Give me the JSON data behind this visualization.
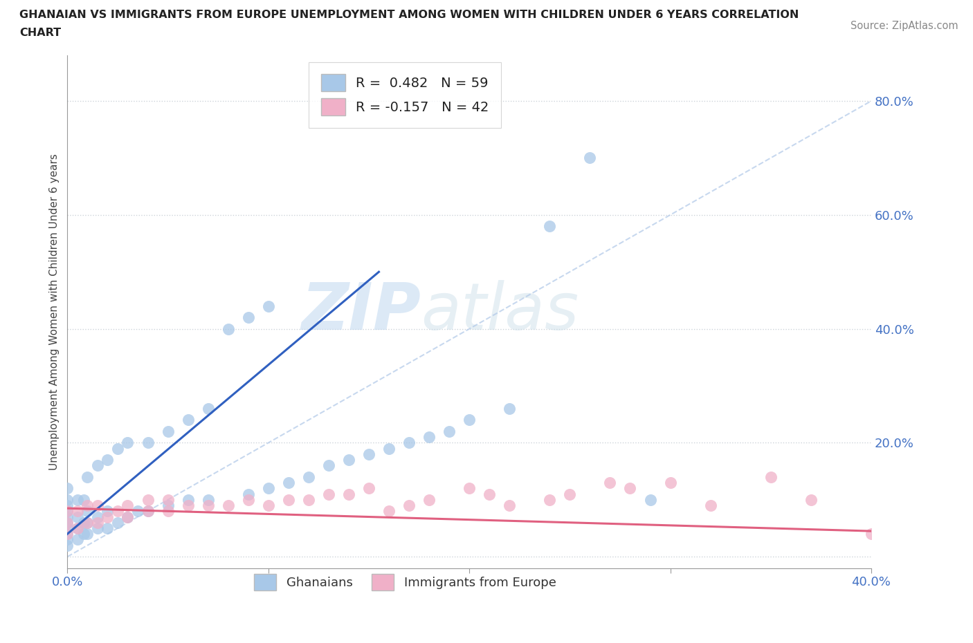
{
  "title_line1": "GHANAIAN VS IMMIGRANTS FROM EUROPE UNEMPLOYMENT AMONG WOMEN WITH CHILDREN UNDER 6 YEARS CORRELATION",
  "title_line2": "CHART",
  "source": "Source: ZipAtlas.com",
  "ylabel": "Unemployment Among Women with Children Under 6 years",
  "xlim": [
    0.0,
    0.4
  ],
  "ylim": [
    -0.02,
    0.88
  ],
  "legend1_label": "R =  0.482   N = 59",
  "legend2_label": "R = -0.157   N = 42",
  "ghanaian_color": "#a8c8e8",
  "europe_color": "#f0b0c8",
  "trend_blue": "#3060c0",
  "trend_pink": "#e06080",
  "diagonal_color": "#b0c8e8",
  "watermark_zip": "ZIP",
  "watermark_atlas": "atlas",
  "ghanaians_x": [
    0.0,
    0.0,
    0.0,
    0.0,
    0.0,
    0.0,
    0.0,
    0.0,
    0.0,
    0.0,
    0.005,
    0.005,
    0.005,
    0.005,
    0.008,
    0.008,
    0.008,
    0.01,
    0.01,
    0.01,
    0.01,
    0.015,
    0.015,
    0.015,
    0.02,
    0.02,
    0.02,
    0.025,
    0.025,
    0.03,
    0.03,
    0.035,
    0.04,
    0.04,
    0.05,
    0.05,
    0.06,
    0.06,
    0.07,
    0.07,
    0.08,
    0.09,
    0.09,
    0.1,
    0.1,
    0.11,
    0.12,
    0.13,
    0.14,
    0.15,
    0.16,
    0.17,
    0.18,
    0.19,
    0.2,
    0.22,
    0.24,
    0.26,
    0.29
  ],
  "ghanaians_y": [
    0.02,
    0.03,
    0.04,
    0.05,
    0.06,
    0.07,
    0.08,
    0.09,
    0.1,
    0.12,
    0.03,
    0.05,
    0.07,
    0.1,
    0.04,
    0.06,
    0.1,
    0.04,
    0.06,
    0.08,
    0.14,
    0.05,
    0.07,
    0.16,
    0.05,
    0.08,
    0.17,
    0.06,
    0.19,
    0.07,
    0.2,
    0.08,
    0.08,
    0.2,
    0.09,
    0.22,
    0.1,
    0.24,
    0.1,
    0.26,
    0.4,
    0.11,
    0.42,
    0.12,
    0.44,
    0.13,
    0.14,
    0.16,
    0.17,
    0.18,
    0.19,
    0.2,
    0.21,
    0.22,
    0.24,
    0.26,
    0.58,
    0.7,
    0.1
  ],
  "europe_x": [
    0.0,
    0.0,
    0.0,
    0.005,
    0.005,
    0.01,
    0.01,
    0.015,
    0.015,
    0.02,
    0.025,
    0.03,
    0.03,
    0.04,
    0.04,
    0.05,
    0.05,
    0.06,
    0.07,
    0.08,
    0.09,
    0.1,
    0.11,
    0.12,
    0.13,
    0.14,
    0.15,
    0.16,
    0.17,
    0.18,
    0.2,
    0.21,
    0.22,
    0.24,
    0.25,
    0.27,
    0.28,
    0.3,
    0.32,
    0.35,
    0.37,
    0.4
  ],
  "europe_y": [
    0.04,
    0.06,
    0.08,
    0.05,
    0.08,
    0.06,
    0.09,
    0.06,
    0.09,
    0.07,
    0.08,
    0.07,
    0.09,
    0.08,
    0.1,
    0.08,
    0.1,
    0.09,
    0.09,
    0.09,
    0.1,
    0.09,
    0.1,
    0.1,
    0.11,
    0.11,
    0.12,
    0.08,
    0.09,
    0.1,
    0.12,
    0.11,
    0.09,
    0.1,
    0.11,
    0.13,
    0.12,
    0.13,
    0.09,
    0.14,
    0.1,
    0.04
  ],
  "blue_trend_x0": 0.0,
  "blue_trend_y0": 0.04,
  "blue_trend_x1": 0.155,
  "blue_trend_y1": 0.5,
  "pink_trend_x0": 0.0,
  "pink_trend_y0": 0.085,
  "pink_trend_x1": 0.4,
  "pink_trend_y1": 0.045
}
